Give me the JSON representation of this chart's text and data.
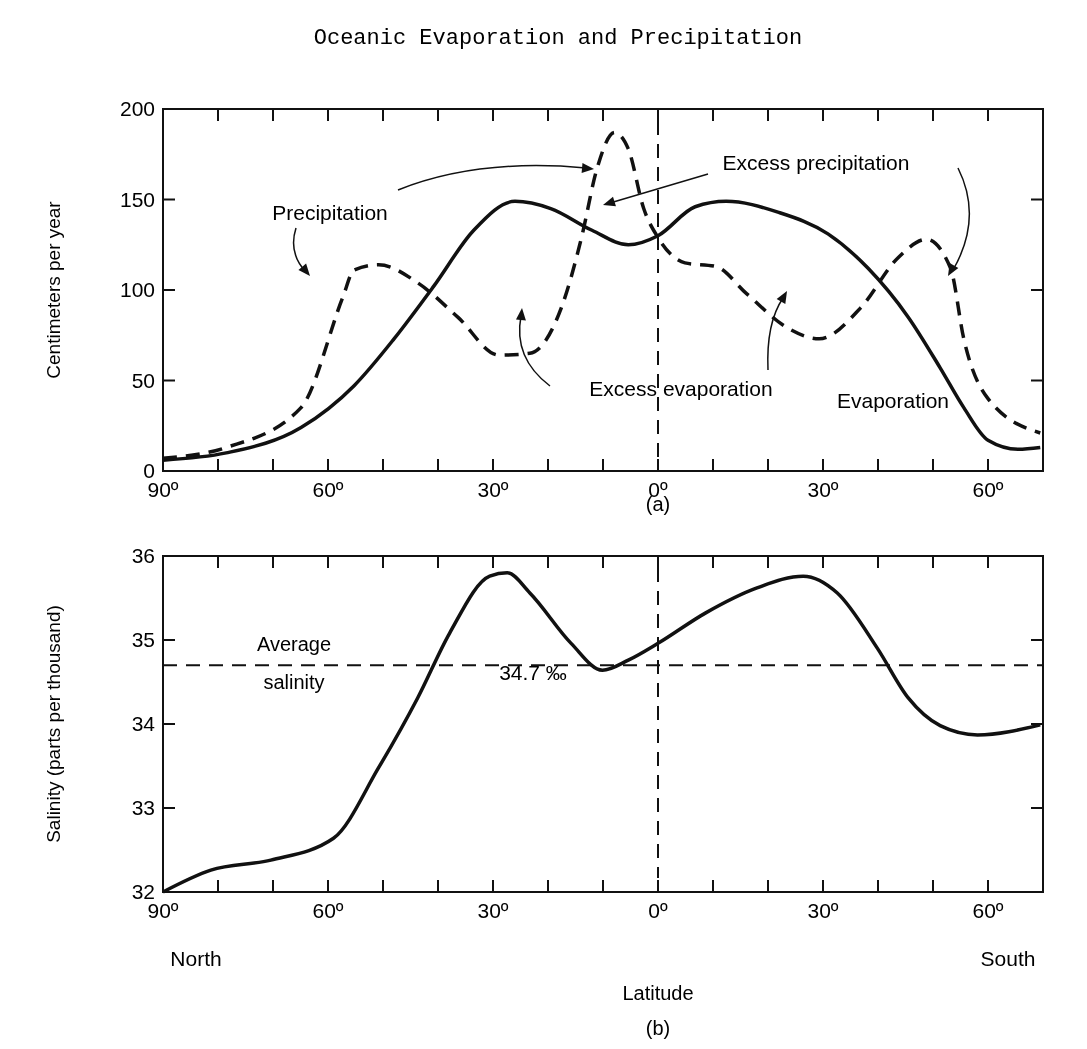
{
  "chart_data": [
    {
      "type": "line",
      "title": "Oceanic Evaporation and Precipitation",
      "xlabel": "(a)",
      "ylabel": "Centimeters per year",
      "xlim": [
        -90,
        70
      ],
      "ylim": [
        0,
        200
      ],
      "xticks": [
        {
          "value": -90,
          "label": "90º"
        },
        {
          "value": -80,
          "label": null
        },
        {
          "value": -70,
          "label": null
        },
        {
          "value": -60,
          "label": "60º"
        },
        {
          "value": -50,
          "label": null
        },
        {
          "value": -40,
          "label": null
        },
        {
          "value": -30,
          "label": "30º"
        },
        {
          "value": -20,
          "label": null
        },
        {
          "value": -10,
          "label": null
        },
        {
          "value": 0,
          "label": "0º"
        },
        {
          "value": 10,
          "label": null
        },
        {
          "value": 20,
          "label": null
        },
        {
          "value": 30,
          "label": "30º"
        },
        {
          "value": 40,
          "label": null
        },
        {
          "value": 50,
          "label": null
        },
        {
          "value": 60,
          "label": "60º"
        }
      ],
      "yticks": [
        0,
        50,
        100,
        150,
        200
      ],
      "series": [
        {
          "name": "Evaporation",
          "color": "#111111",
          "line_style": "solid",
          "x": [
            -90,
            -78.5,
            -64.9,
            -55.3,
            -48,
            -40.8,
            -33.5,
            -26,
            -19.5,
            -12,
            -5.4,
            0,
            6.75,
            12.4,
            21.8,
            30.9,
            38.2,
            45.5,
            51.3,
            55.6,
            60,
            65.5,
            69.5
          ],
          "values": [
            6,
            10,
            24,
            47,
            73,
            102,
            133,
            149,
            145,
            133,
            125,
            130,
            146,
            149,
            143,
            131,
            112,
            85,
            57,
            35,
            17,
            12,
            13
          ]
        },
        {
          "name": "Precipitation",
          "color": "#111111",
          "line_style": "dashed",
          "x": [
            -90,
            -78.5,
            -64.9,
            -57.3,
            -55.3,
            -50.8,
            -43.7,
            -36.4,
            -28.9,
            -23.3,
            -17.6,
            -13.9,
            -11.1,
            -7.9,
            -5.4,
            -2.6,
            0,
            4.9,
            10.5,
            16.1,
            23.6,
            29.3,
            36.8,
            43.7,
            48.8,
            53.2,
            55.6,
            60,
            69.5
          ],
          "values": [
            7,
            13,
            35,
            96,
            111,
            114,
            104,
            85,
            64,
            65,
            90,
            129,
            167,
            187,
            178,
            145,
            129,
            115,
            113,
            98,
            79,
            73,
            90,
            118,
            128,
            112,
            73,
            40,
            21
          ]
        }
      ],
      "ref_lines": [
        {
          "axis": "x",
          "value": 0,
          "line_style": "dashed"
        }
      ],
      "annotations": [
        "Excess precipitation",
        "Excess evaporation"
      ]
    },
    {
      "type": "line",
      "xlabel": "Latitude",
      "subtitle": "(b)",
      "ylabel": "Salinity (parts per thousand)",
      "xlim": [
        -90,
        70
      ],
      "ylim": [
        32,
        36
      ],
      "xticks": [
        {
          "value": -90,
          "label": "90º"
        },
        {
          "value": -80,
          "label": null
        },
        {
          "value": -70,
          "label": null
        },
        {
          "value": -60,
          "label": "60º"
        },
        {
          "value": -50,
          "label": null
        },
        {
          "value": -40,
          "label": null
        },
        {
          "value": -30,
          "label": "30º"
        },
        {
          "value": -20,
          "label": null
        },
        {
          "value": -10,
          "label": null
        },
        {
          "value": 0,
          "label": "0º"
        },
        {
          "value": 10,
          "label": null
        },
        {
          "value": 20,
          "label": null
        },
        {
          "value": 30,
          "label": "30º"
        },
        {
          "value": 40,
          "label": null
        },
        {
          "value": 50,
          "label": null
        },
        {
          "value": 60,
          "label": "60º"
        }
      ],
      "yticks": [
        32,
        33,
        34,
        35,
        36
      ],
      "series": [
        {
          "color": "#111111",
          "line_style": "solid",
          "x": [
            -90,
            -81.3,
            -70.4,
            -59,
            -50.8,
            -43.7,
            -37.9,
            -30.6,
            -27.4,
            -23.3,
            -15.8,
            -10.1,
            -5.4,
            0,
            8.6,
            18,
            26.4,
            32.6,
            39.9,
            45.5,
            51.3,
            58.1,
            69.5
          ],
          "values": [
            32,
            32.26,
            32.38,
            32.64,
            33.48,
            34.31,
            35.08,
            35.76,
            35.8,
            35.56,
            34.96,
            34.64,
            34.76,
            34.96,
            35.32,
            35.62,
            35.76,
            35.56,
            34.9,
            34.31,
            33.98,
            33.87,
            33.99
          ]
        }
      ],
      "ref_lines": [
        {
          "axis": "y",
          "value": 34.7,
          "label": "Average salinity",
          "line_style": "dashed"
        },
        {
          "axis": "x",
          "value": 0,
          "line_style": "dashed"
        }
      ],
      "annotations": [
        "34.7 ‰",
        "North",
        "South"
      ]
    }
  ]
}
